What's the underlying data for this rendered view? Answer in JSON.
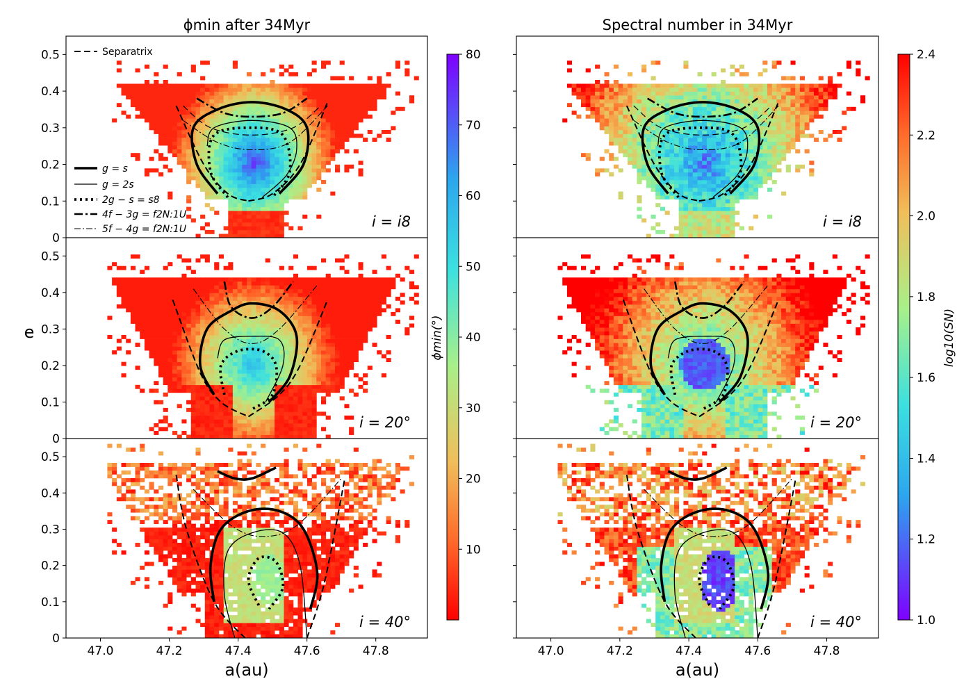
{
  "chart_data": {
    "type": "heatmap",
    "panel_grid": "3 rows x 2 columns with shared x axis",
    "column_titles": [
      "ϕmin after 34Myr",
      "Spectral number in 34Myr"
    ],
    "xlabel": "a(au)",
    "ylabel": "e",
    "xlim": [
      46.9,
      47.95
    ],
    "ylim": [
      0,
      0.55
    ],
    "xticks": [
      47.0,
      47.2,
      47.4,
      47.6,
      47.8
    ],
    "xtick_labels": [
      "47.0",
      "47.2",
      "47.4",
      "47.6",
      "47.8"
    ],
    "yticks": [
      0,
      0.1,
      0.2,
      0.3,
      0.4,
      0.5
    ],
    "ytick_labels": [
      "0",
      "0.1",
      "0.2",
      "0.3",
      "0.4",
      "0.5"
    ],
    "row_labels": [
      "i = i8",
      "i = 20°",
      "i = 40°"
    ],
    "colorbars": [
      {
        "name": "phi_min",
        "label": "ϕmin(°)",
        "range": [
          0,
          80
        ],
        "ticks": [
          10,
          20,
          30,
          40,
          50,
          60,
          70,
          80
        ],
        "tick_labels": [
          "10",
          "20",
          "30",
          "40",
          "50",
          "60",
          "70",
          "80"
        ],
        "colormap": "rainbow_r"
      },
      {
        "name": "log10_SN",
        "label": "log10(SN)",
        "range": [
          1.0,
          2.4
        ],
        "ticks": [
          1.0,
          1.2,
          1.4,
          1.6,
          1.8,
          2.0,
          2.2,
          2.4
        ],
        "tick_labels": [
          "1.0",
          "1.2",
          "1.4",
          "1.6",
          "1.8",
          "2.0",
          "2.2",
          "2.4"
        ],
        "colormap": "rainbow"
      }
    ],
    "legend": {
      "location": "left",
      "entries": [
        {
          "label": "Separatrix",
          "style": "dashed"
        },
        {
          "label": "g = s",
          "style": "thick solid"
        },
        {
          "label": "g = 2s",
          "style": "thin solid"
        },
        {
          "label": "2g − s = s8",
          "style": "dotted"
        },
        {
          "label": "4f − 3g = f2N:1U",
          "style": "thick dash-dot"
        },
        {
          "label": "5f − 4g = f2N:1U",
          "style": "thin dash-dot"
        }
      ]
    },
    "resonance_curves": [
      {
        "row": "i = i8",
        "separatrix": {
          "left": [
            [
              47.22,
              0.36
            ],
            [
              47.3,
              0.2
            ],
            [
              47.37,
              0.12
            ],
            [
              47.43,
              0.1
            ]
          ],
          "right": [
            [
              47.43,
              0.1
            ],
            [
              47.5,
              0.12
            ],
            [
              47.58,
              0.2
            ],
            [
              47.66,
              0.37
            ]
          ]
        },
        "separatrix_inner": [
          [
            47.24,
            0.36
          ],
          [
            47.32,
            0.3
          ],
          [
            47.44,
            0.28
          ],
          [
            47.56,
            0.3
          ],
          [
            47.64,
            0.36
          ]
        ],
        "g_eq_s": [
          [
            47.34,
            0.12
          ],
          [
            47.28,
            0.2
          ],
          [
            47.27,
            0.3
          ],
          [
            47.34,
            0.35
          ],
          [
            47.44,
            0.37
          ],
          [
            47.54,
            0.35
          ],
          [
            47.6,
            0.3
          ],
          [
            47.59,
            0.2
          ],
          [
            47.52,
            0.12
          ]
        ],
        "g_eq_2s": [
          [
            47.31,
            0.25
          ],
          [
            47.33,
            0.3
          ],
          [
            47.44,
            0.32
          ],
          [
            47.55,
            0.3
          ],
          [
            47.57,
            0.24
          ],
          [
            47.54,
            0.17
          ],
          [
            47.47,
            0.11
          ]
        ],
        "2g_minus_s_eq_s8": [
          [
            47.37,
            0.11
          ],
          [
            47.32,
            0.18
          ],
          [
            47.33,
            0.28
          ],
          [
            47.44,
            0.3
          ],
          [
            47.53,
            0.28
          ],
          [
            47.55,
            0.18
          ],
          [
            47.5,
            0.11
          ]
        ],
        "4f_minus_3g": [
          [
            47.28,
            0.38
          ],
          [
            47.36,
            0.34
          ],
          [
            47.44,
            0.33
          ],
          [
            47.53,
            0.34
          ],
          [
            47.6,
            0.38
          ]
        ],
        "5f_minus_4g": [
          [
            47.24,
            0.32
          ],
          [
            47.34,
            0.26
          ],
          [
            47.44,
            0.24
          ],
          [
            47.55,
            0.26
          ],
          [
            47.66,
            0.36
          ]
        ]
      },
      {
        "row": "i = 20°",
        "separatrix": {
          "left": [
            [
              47.21,
              0.38
            ],
            [
              47.29,
              0.18
            ],
            [
              47.35,
              0.1
            ],
            [
              47.43,
              0.06
            ]
          ],
          "right": [
            [
              47.43,
              0.06
            ],
            [
              47.52,
              0.12
            ],
            [
              47.58,
              0.2
            ],
            [
              47.66,
              0.38
            ]
          ]
        },
        "g_eq_s": [
          [
            47.33,
            0.12
          ],
          [
            47.29,
            0.2
          ],
          [
            47.31,
            0.3
          ],
          [
            47.38,
            0.35
          ],
          [
            47.44,
            0.37
          ],
          [
            47.52,
            0.35
          ],
          [
            47.57,
            0.28
          ],
          [
            47.55,
            0.17
          ],
          [
            47.49,
            0.1
          ]
        ],
        "g_eq_2s": [
          [
            47.34,
            0.22
          ],
          [
            47.36,
            0.27
          ],
          [
            47.44,
            0.28
          ],
          [
            47.52,
            0.27
          ],
          [
            47.53,
            0.2
          ],
          [
            47.48,
            0.1
          ]
        ],
        "2g_minus_s_eq_s8": [
          [
            47.36,
            0.12
          ],
          [
            47.35,
            0.2
          ],
          [
            47.4,
            0.24
          ],
          [
            47.47,
            0.24
          ],
          [
            47.51,
            0.2
          ],
          [
            47.5,
            0.12
          ],
          [
            47.44,
            0.08
          ]
        ],
        "4f_minus_3g": [
          [
            47.36,
            0.43
          ],
          [
            47.38,
            0.36
          ],
          [
            47.44,
            0.33
          ],
          [
            47.5,
            0.36
          ],
          [
            47.56,
            0.43
          ]
        ],
        "5f_minus_4g": [
          [
            47.27,
            0.41
          ],
          [
            47.36,
            0.3
          ],
          [
            47.44,
            0.26
          ],
          [
            47.52,
            0.3
          ],
          [
            47.63,
            0.42
          ]
        ]
      },
      {
        "row": "i = 40°",
        "separatrix": {
          "left": [
            [
              47.22,
              0.45
            ],
            [
              47.25,
              0.3
            ],
            [
              47.33,
              0.1
            ],
            [
              47.42,
              0.0
            ]
          ],
          "right": [
            [
              47.6,
              0.0
            ],
            [
              47.65,
              0.15
            ],
            [
              47.71,
              0.44
            ]
          ]
        },
        "g_eq_s": [
          [
            47.33,
            0.1
          ],
          [
            47.32,
            0.2
          ],
          [
            47.35,
            0.3
          ],
          [
            47.43,
            0.35
          ],
          [
            47.52,
            0.35
          ],
          [
            47.59,
            0.3
          ],
          [
            47.63,
            0.18
          ],
          [
            47.61,
            0.08
          ]
        ],
        "g_eq_s_top": [
          [
            47.34,
            0.46
          ],
          [
            47.39,
            0.44
          ],
          [
            47.44,
            0.44
          ],
          [
            47.51,
            0.47
          ]
        ],
        "g_eq_2s": [
          [
            47.39,
            0.0
          ],
          [
            47.36,
            0.12
          ],
          [
            47.37,
            0.24
          ],
          [
            47.44,
            0.29
          ],
          [
            47.53,
            0.29
          ],
          [
            47.58,
            0.2
          ],
          [
            47.6,
            0.0
          ]
        ],
        "2g_minus_s_eq_s8": [
          [
            47.46,
            0.09
          ],
          [
            47.43,
            0.16
          ],
          [
            47.46,
            0.22
          ],
          [
            47.51,
            0.21
          ],
          [
            47.53,
            0.14
          ],
          [
            47.49,
            0.08
          ]
        ],
        "5f_minus_4g": [
          [
            47.27,
            0.41
          ],
          [
            47.38,
            0.31
          ],
          [
            47.47,
            0.28
          ],
          [
            47.57,
            0.31
          ],
          [
            47.7,
            0.44
          ]
        ]
      }
    ],
    "particle_distribution": "Scattered grid cells (a, e) colored by ϕmin (left column) and log10(SN) (right column); red/low-phi cells dominate the outer and high-inclination region, blue/high-phi cells concentrate near a≈47.44 au, e≈0.15–0.25 for i=i8."
  }
}
